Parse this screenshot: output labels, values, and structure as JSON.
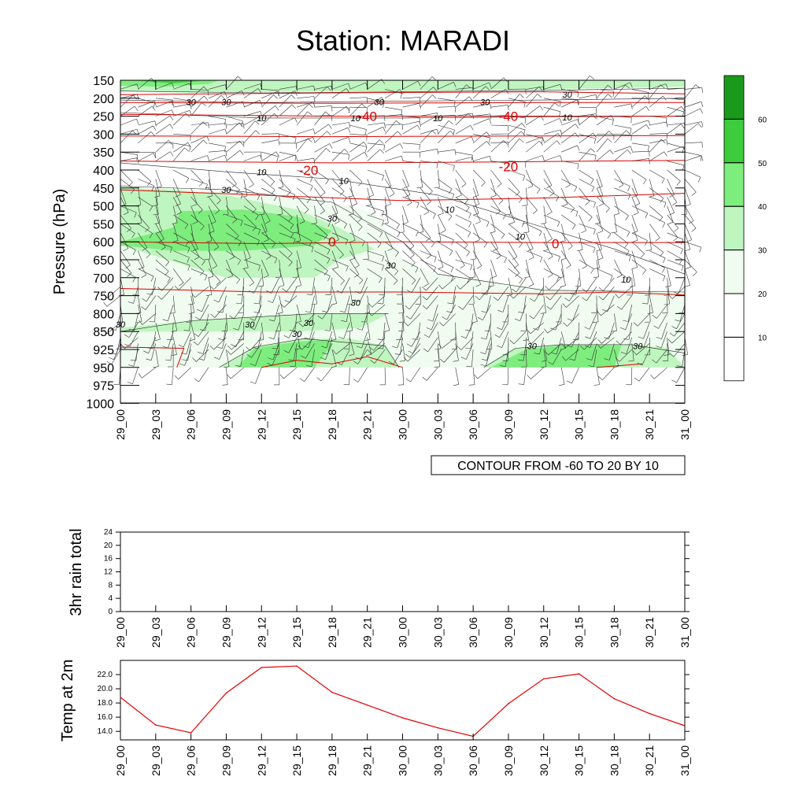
{
  "chart_data": [
    {
      "type": "heatmap",
      "subtype": "time-pressure cross-section (humidity shading, wind barbs, temperature contours)",
      "title": "Station: MARADI",
      "ylabel": "Pressure (hPa)",
      "x_ticks": [
        "29_00",
        "29_03",
        "29_06",
        "29_09",
        "29_12",
        "29_15",
        "29_18",
        "29_21",
        "30_00",
        "30_03",
        "30_06",
        "30_09",
        "30_12",
        "30_15",
        "30_18",
        "30_21",
        "31_00"
      ],
      "y_levels": [
        150,
        200,
        250,
        300,
        350,
        400,
        450,
        500,
        550,
        600,
        650,
        700,
        750,
        800,
        850,
        925,
        950,
        975,
        1000
      ],
      "colorbar": {
        "levels": [
          10,
          20,
          30,
          40,
          50,
          60
        ],
        "colors": [
          "#ffffff",
          "#ffffff",
          "#effcef",
          "#bff5bf",
          "#7ded7d",
          "#3ccc3c",
          "#1a9a1a"
        ]
      },
      "contour_info": "CONTOUR FROM -60 TO 20 BY 10",
      "temperature_contours": {
        "color": "#e00000",
        "labels": [
          {
            "value": "-40",
            "x": "29_21",
            "p": 250
          },
          {
            "value": "-40",
            "x": "30_09",
            "p": 250
          },
          {
            "value": "-20",
            "x": "29_16",
            "p": 400
          },
          {
            "value": "-20",
            "x": "30_09",
            "p": 390
          },
          {
            "value": "0",
            "x": "29_18",
            "p": 600
          },
          {
            "value": "0",
            "x": "30_13",
            "p": 605
          }
        ]
      },
      "humidity_contour_labels": [
        {
          "value": "30",
          "x": "29_06",
          "p": 210
        },
        {
          "value": "30",
          "x": "29_09",
          "p": 210
        },
        {
          "value": "30",
          "x": "29_22",
          "p": 210
        },
        {
          "value": "30",
          "x": "30_07",
          "p": 210
        },
        {
          "value": "30",
          "x": "30_14",
          "p": 190
        },
        {
          "value": "10",
          "x": "29_12",
          "p": 255
        },
        {
          "value": "10",
          "x": "29_20",
          "p": 255
        },
        {
          "value": "10",
          "x": "30_03",
          "p": 255
        },
        {
          "value": "10",
          "x": "30_14",
          "p": 253
        },
        {
          "value": "10",
          "x": "29_12",
          "p": 405
        },
        {
          "value": "10",
          "x": "29_19",
          "p": 430
        },
        {
          "value": "30",
          "x": "29_09",
          "p": 455
        },
        {
          "value": "10",
          "x": "30_04",
          "p": 510
        },
        {
          "value": "30",
          "x": "29_18",
          "p": 535
        },
        {
          "value": "10",
          "x": "30_10",
          "p": 585
        },
        {
          "value": "30",
          "x": "29_23",
          "p": 665
        },
        {
          "value": "10",
          "x": "30_19",
          "p": 705
        },
        {
          "value": "30",
          "x": "29_20",
          "p": 770
        },
        {
          "value": "30",
          "x": "29_00",
          "p": 830
        },
        {
          "value": "30",
          "x": "29_11",
          "p": 830
        },
        {
          "value": "30",
          "x": "29_16",
          "p": 825
        },
        {
          "value": "30",
          "x": "29_15",
          "p": 860
        },
        {
          "value": "30",
          "x": "30_11",
          "p": 910
        },
        {
          "value": "30",
          "x": "30_20",
          "p": 910
        }
      ]
    },
    {
      "type": "line",
      "ylabel": "3hr rain total",
      "x_ticks": [
        "29_00",
        "29_03",
        "29_06",
        "29_09",
        "29_12",
        "29_15",
        "29_18",
        "29_21",
        "30_00",
        "30_03",
        "30_06",
        "30_09",
        "30_12",
        "30_15",
        "30_18",
        "30_21",
        "31_00"
      ],
      "y_ticks": [
        0,
        4,
        8,
        12,
        16,
        20,
        24
      ],
      "ylim": [
        0,
        24
      ],
      "values": []
    },
    {
      "type": "line",
      "ylabel": "Temp at 2m",
      "x": [
        "29_00",
        "29_03",
        "29_06",
        "29_09",
        "29_12",
        "29_15",
        "29_18",
        "29_21",
        "30_00",
        "30_03",
        "30_06",
        "30_09",
        "30_12",
        "30_15",
        "30_18",
        "30_21",
        "31_00"
      ],
      "y_ticks": [
        "14.0",
        "16.0",
        "18.0",
        "20.0",
        "22.0"
      ],
      "ylim": [
        12.8,
        24.0
      ],
      "series": [
        {
          "values": [
            18.8,
            14.9,
            13.8,
            19.4,
            23.0,
            23.2,
            19.5,
            17.7,
            15.9,
            14.5,
            13.3,
            17.9,
            21.4,
            22.1,
            18.6,
            16.5,
            14.8
          ],
          "color": "#e00000"
        }
      ]
    }
  ]
}
